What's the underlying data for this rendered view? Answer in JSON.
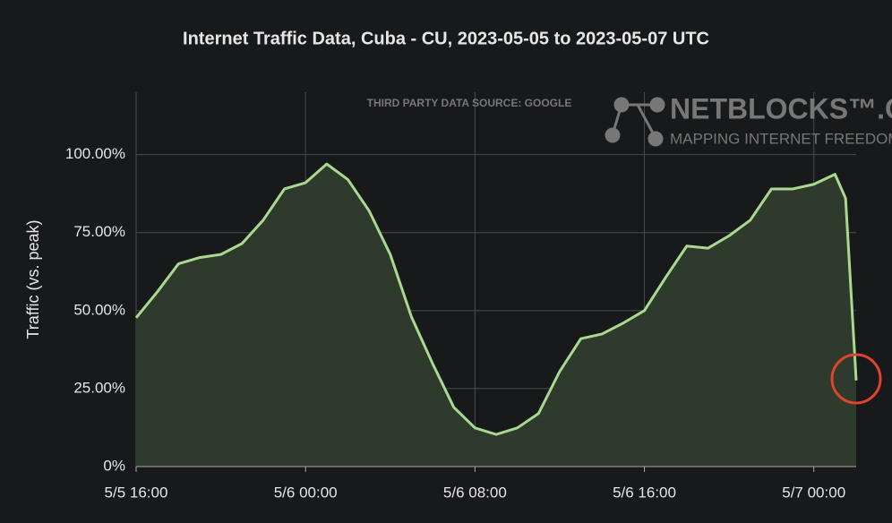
{
  "chart_data": {
    "type": "area",
    "title": "Internet Traffic Data, Cuba - CU, 2023-05-05 to 2023-05-07 UTC",
    "y_label": "Traffic (vs. peak)",
    "source_note": "THIRD PARTY DATA SOURCE: GOOGLE",
    "brand": "NETBLOCKS™.ORG",
    "brand_tagline": "MAPPING INTERNET FREEDOM",
    "x": [
      "5/5 16:00",
      "5/5 17:00",
      "5/5 18:00",
      "5/5 19:00",
      "5/5 20:00",
      "5/5 21:00",
      "5/5 22:00",
      "5/5 23:00",
      "5/6 00:00",
      "5/6 01:00",
      "5/6 02:00",
      "5/6 03:00",
      "5/6 04:00",
      "5/6 05:00",
      "5/6 06:00",
      "5/6 07:00",
      "5/6 08:00",
      "5/6 09:00",
      "5/6 10:00",
      "5/6 11:00",
      "5/6 12:00",
      "5/6 13:00",
      "5/6 14:00",
      "5/6 15:00",
      "5/6 16:00",
      "5/6 17:00",
      "5/6 18:00",
      "5/6 19:00",
      "5/6 20:00",
      "5/6 21:00",
      "5/6 22:00",
      "5/6 23:00",
      "5/7 00:00",
      "5/7 01:00",
      "5/7 01:30",
      "5/7 02:00"
    ],
    "series": [
      {
        "name": "Traffic",
        "color": "#a9d98f",
        "fill": "#2e3a2b",
        "values": [
          47.7,
          56,
          65,
          67,
          68,
          71.5,
          79,
          89,
          91,
          97,
          92,
          82,
          68,
          48,
          33,
          19,
          12.4,
          10.3,
          12.4,
          17,
          30.5,
          41,
          42.5,
          46,
          50,
          60.6,
          70.7,
          70,
          74,
          79,
          89,
          89,
          90.5,
          93.7,
          86,
          27.6
        ]
      }
    ],
    "xlim": [
      "5/5 16:00",
      "5/7 02:00"
    ],
    "xticks": [
      "5/5 16:00",
      "5/6 00:00",
      "5/6 08:00",
      "5/6 16:00",
      "5/7 00:00"
    ],
    "ylim": [
      0,
      120
    ],
    "yticks": [
      {
        "value": 0,
        "label": "0%"
      },
      {
        "value": 25,
        "label": "25.00%"
      },
      {
        "value": 50,
        "label": "50.00%"
      },
      {
        "value": 75,
        "label": "75.00%"
      },
      {
        "value": 100,
        "label": "100.00%"
      }
    ],
    "grid": true
  }
}
